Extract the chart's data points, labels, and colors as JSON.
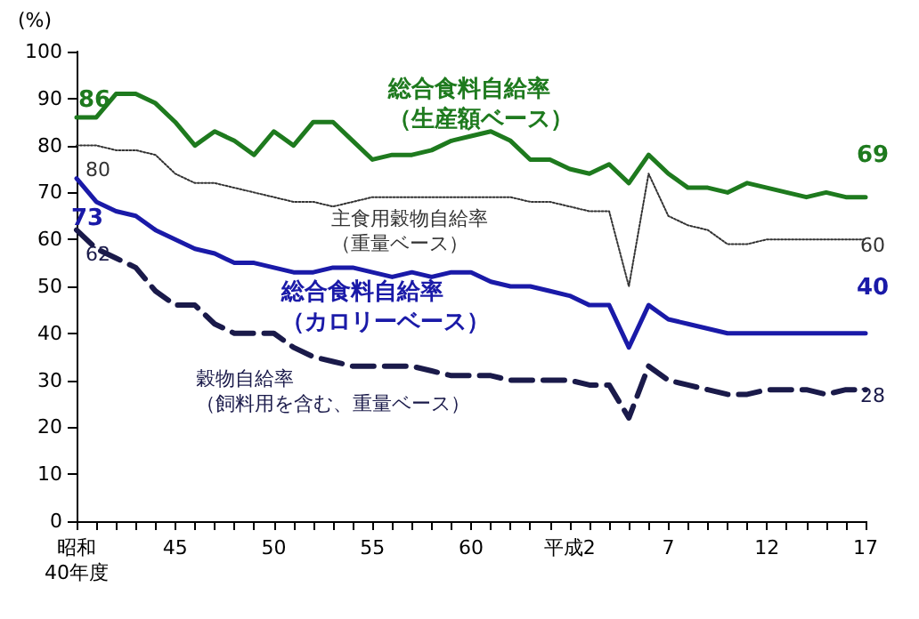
{
  "chart_data": {
    "type": "line",
    "ylabel": "(%)",
    "ylim": [
      0,
      100
    ],
    "yticks": [
      0,
      10,
      20,
      30,
      40,
      50,
      60,
      70,
      80,
      90,
      100
    ],
    "grid": false,
    "legend": false,
    "marker": "none",
    "categories": [
      "昭和\n40年度",
      null,
      null,
      null,
      null,
      "45",
      null,
      null,
      null,
      null,
      "50",
      null,
      null,
      null,
      null,
      "55",
      null,
      null,
      null,
      null,
      "60",
      null,
      null,
      null,
      null,
      "平成2",
      null,
      null,
      null,
      null,
      "7",
      null,
      null,
      null,
      null,
      "12",
      null,
      null,
      null,
      null,
      "17"
    ],
    "series": [
      {
        "name": "総合食料自給率（生産額ベース）",
        "color": "#1e7a1e",
        "line_style": "solid",
        "values": [
          86,
          86,
          91,
          91,
          89,
          85,
          80,
          83,
          81,
          78,
          83,
          80,
          85,
          85,
          81,
          77,
          78,
          78,
          79,
          81,
          82,
          83,
          81,
          77,
          77,
          75,
          74,
          76,
          72,
          78,
          74,
          71,
          71,
          70,
          72,
          71,
          70,
          69,
          70,
          69,
          69
        ],
        "value_labels": [
          "86",
          null,
          null,
          null,
          null,
          null,
          null,
          null,
          null,
          null,
          null,
          null,
          null,
          null,
          null,
          null,
          null,
          null,
          null,
          null,
          null,
          null,
          null,
          null,
          null,
          null,
          null,
          null,
          null,
          null,
          null,
          null,
          null,
          null,
          null,
          null,
          null,
          null,
          null,
          null,
          "69"
        ]
      },
      {
        "name": "主食用穀物自給率（重量ベース）",
        "color": "#333333",
        "line_style": "dotted",
        "values": [
          80,
          80,
          79,
          79,
          78,
          74,
          72,
          72,
          71,
          70,
          69,
          68,
          68,
          67,
          68,
          69,
          69,
          69,
          69,
          69,
          69,
          69,
          69,
          68,
          68,
          67,
          66,
          66,
          50,
          74,
          65,
          63,
          62,
          59,
          59,
          60,
          60,
          60,
          60,
          60,
          60
        ],
        "value_labels": [
          "80",
          null,
          null,
          null,
          null,
          null,
          null,
          null,
          null,
          null,
          null,
          null,
          null,
          null,
          null,
          null,
          null,
          null,
          null,
          null,
          null,
          null,
          null,
          null,
          null,
          null,
          null,
          null,
          null,
          null,
          null,
          null,
          null,
          null,
          null,
          null,
          null,
          null,
          null,
          null,
          "60"
        ]
      },
      {
        "name": "総合食料自給率（カロリーベース）",
        "color": "#1a1aa8",
        "line_style": "solid",
        "values": [
          73,
          68,
          66,
          65,
          62,
          60,
          58,
          57,
          55,
          55,
          54,
          53,
          53,
          54,
          54,
          53,
          52,
          53,
          52,
          53,
          53,
          51,
          50,
          50,
          49,
          48,
          46,
          46,
          37,
          46,
          43,
          42,
          41,
          40,
          40,
          40,
          40,
          40,
          40,
          40,
          40
        ],
        "value_labels": [
          "73",
          null,
          null,
          null,
          null,
          null,
          null,
          null,
          null,
          null,
          null,
          null,
          null,
          null,
          null,
          null,
          null,
          null,
          null,
          null,
          null,
          null,
          null,
          null,
          null,
          null,
          null,
          null,
          null,
          null,
          null,
          null,
          null,
          null,
          null,
          null,
          null,
          null,
          null,
          null,
          "40"
        ]
      },
      {
        "name": "穀物自給率（飼料用を含む、重量ベース）",
        "color": "#1a1a4a",
        "line_style": "dashed",
        "values": [
          62,
          58,
          56,
          54,
          49,
          46,
          46,
          42,
          40,
          40,
          40,
          37,
          35,
          34,
          33,
          33,
          33,
          33,
          32,
          31,
          31,
          31,
          30,
          30,
          30,
          30,
          29,
          29,
          22,
          33,
          30,
          29,
          28,
          27,
          27,
          28,
          28,
          28,
          27,
          28,
          28
        ],
        "value_labels": [
          "62",
          null,
          null,
          null,
          null,
          null,
          null,
          null,
          null,
          null,
          null,
          null,
          null,
          null,
          null,
          null,
          null,
          null,
          null,
          null,
          null,
          null,
          null,
          null,
          null,
          null,
          null,
          null,
          null,
          null,
          null,
          null,
          null,
          null,
          null,
          null,
          null,
          null,
          null,
          null,
          "28"
        ]
      }
    ]
  }
}
